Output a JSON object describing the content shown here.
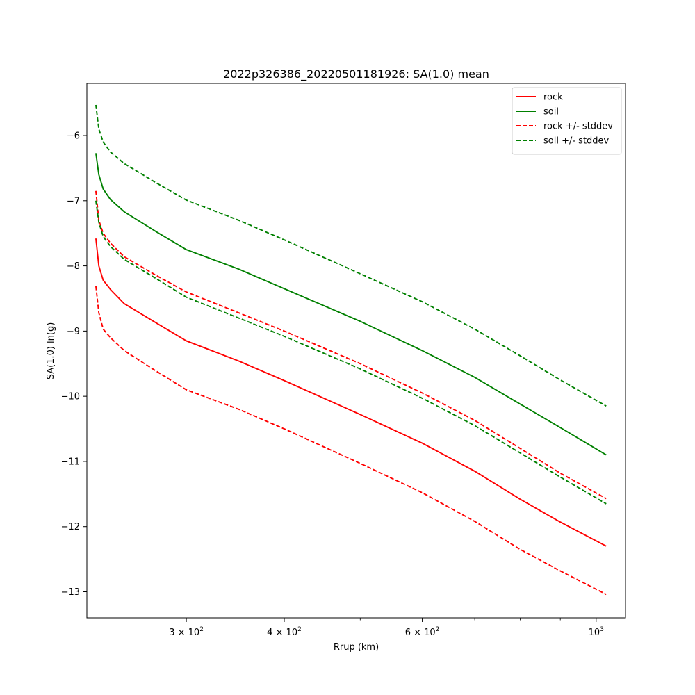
{
  "chart_data": {
    "type": "line",
    "title": "2022p326386_20220501181926: SA(1.0) mean",
    "xlabel": "Rrup (km)",
    "ylabel": "SA(1.0) ln(g)",
    "xscale": "log",
    "xlim": [
      224,
      1090
    ],
    "ylim": [
      -13.4,
      -5.2
    ],
    "x_ticks": [
      {
        "value": 300,
        "label": "3 × 10",
        "exp": "2"
      },
      {
        "value": 400,
        "label": "4 × 10",
        "exp": "2"
      },
      {
        "value": 600,
        "label": "6 × 10",
        "exp": "2"
      },
      {
        "value": 1000,
        "label": "10",
        "exp": "3"
      }
    ],
    "x_minor_ticks": [
      500,
      700,
      800,
      900
    ],
    "y_ticks": [
      {
        "value": -6,
        "label": "−6"
      },
      {
        "value": -7,
        "label": "−7"
      },
      {
        "value": -8,
        "label": "−8"
      },
      {
        "value": -9,
        "label": "−9"
      },
      {
        "value": -10,
        "label": "−10"
      },
      {
        "value": -11,
        "label": "−11"
      },
      {
        "value": -12,
        "label": "−12"
      },
      {
        "value": -13,
        "label": "−13"
      }
    ],
    "grid": false,
    "legend_position": "top-right",
    "series": [
      {
        "name": "rock",
        "color": "#ff0000",
        "dash": "solid",
        "x": [
          230,
          232,
          235,
          240,
          250,
          275,
          300,
          350,
          400,
          500,
          600,
          700,
          800,
          900,
          1030
        ],
        "y": [
          -7.58,
          -8.0,
          -8.22,
          -8.36,
          -8.58,
          -8.88,
          -9.15,
          -9.46,
          -9.76,
          -10.28,
          -10.72,
          -11.15,
          -11.58,
          -11.93,
          -12.3
        ]
      },
      {
        "name": "soil",
        "color": "#008000",
        "dash": "solid",
        "x": [
          230,
          232,
          235,
          240,
          250,
          275,
          300,
          350,
          400,
          500,
          600,
          700,
          800,
          900,
          1030
        ],
        "y": [
          -6.27,
          -6.6,
          -6.82,
          -6.98,
          -7.17,
          -7.48,
          -7.75,
          -8.05,
          -8.35,
          -8.85,
          -9.3,
          -9.71,
          -10.12,
          -10.48,
          -10.9
        ]
      },
      {
        "name": "rock +/- stddev",
        "color": "#ff0000",
        "dash": "dashed",
        "x": [
          230,
          232,
          235,
          240,
          250,
          275,
          300,
          350,
          400,
          500,
          600,
          700,
          800,
          900,
          1030
        ],
        "y": [
          -6.85,
          -7.3,
          -7.5,
          -7.65,
          -7.86,
          -8.15,
          -8.4,
          -8.72,
          -9.0,
          -9.5,
          -9.95,
          -10.37,
          -10.8,
          -11.18,
          -11.57
        ]
      },
      {
        "name": "",
        "color": "#ff0000",
        "dash": "dashed",
        "x": [
          230,
          232,
          235,
          240,
          250,
          275,
          300,
          350,
          400,
          500,
          600,
          700,
          800,
          900,
          1030
        ],
        "y": [
          -8.31,
          -8.72,
          -8.97,
          -9.1,
          -9.3,
          -9.62,
          -9.9,
          -10.2,
          -10.5,
          -11.03,
          -11.48,
          -11.92,
          -12.35,
          -12.68,
          -13.04
        ]
      },
      {
        "name": "soil +/- stddev",
        "color": "#008000",
        "dash": "dashed",
        "x": [
          230,
          232,
          235,
          240,
          250,
          275,
          300,
          350,
          400,
          500,
          600,
          700,
          800,
          900,
          1030
        ],
        "y": [
          -5.53,
          -5.9,
          -6.1,
          -6.25,
          -6.43,
          -6.73,
          -6.99,
          -7.3,
          -7.6,
          -8.12,
          -8.55,
          -8.97,
          -9.38,
          -9.75,
          -10.15
        ]
      },
      {
        "name": "",
        "color": "#008000",
        "dash": "dashed",
        "x": [
          230,
          232,
          235,
          240,
          250,
          275,
          300,
          350,
          400,
          500,
          600,
          700,
          800,
          900,
          1030
        ],
        "y": [
          -7.0,
          -7.33,
          -7.55,
          -7.7,
          -7.9,
          -8.2,
          -8.48,
          -8.8,
          -9.08,
          -9.58,
          -10.03,
          -10.45,
          -10.87,
          -11.24,
          -11.65
        ]
      }
    ]
  }
}
